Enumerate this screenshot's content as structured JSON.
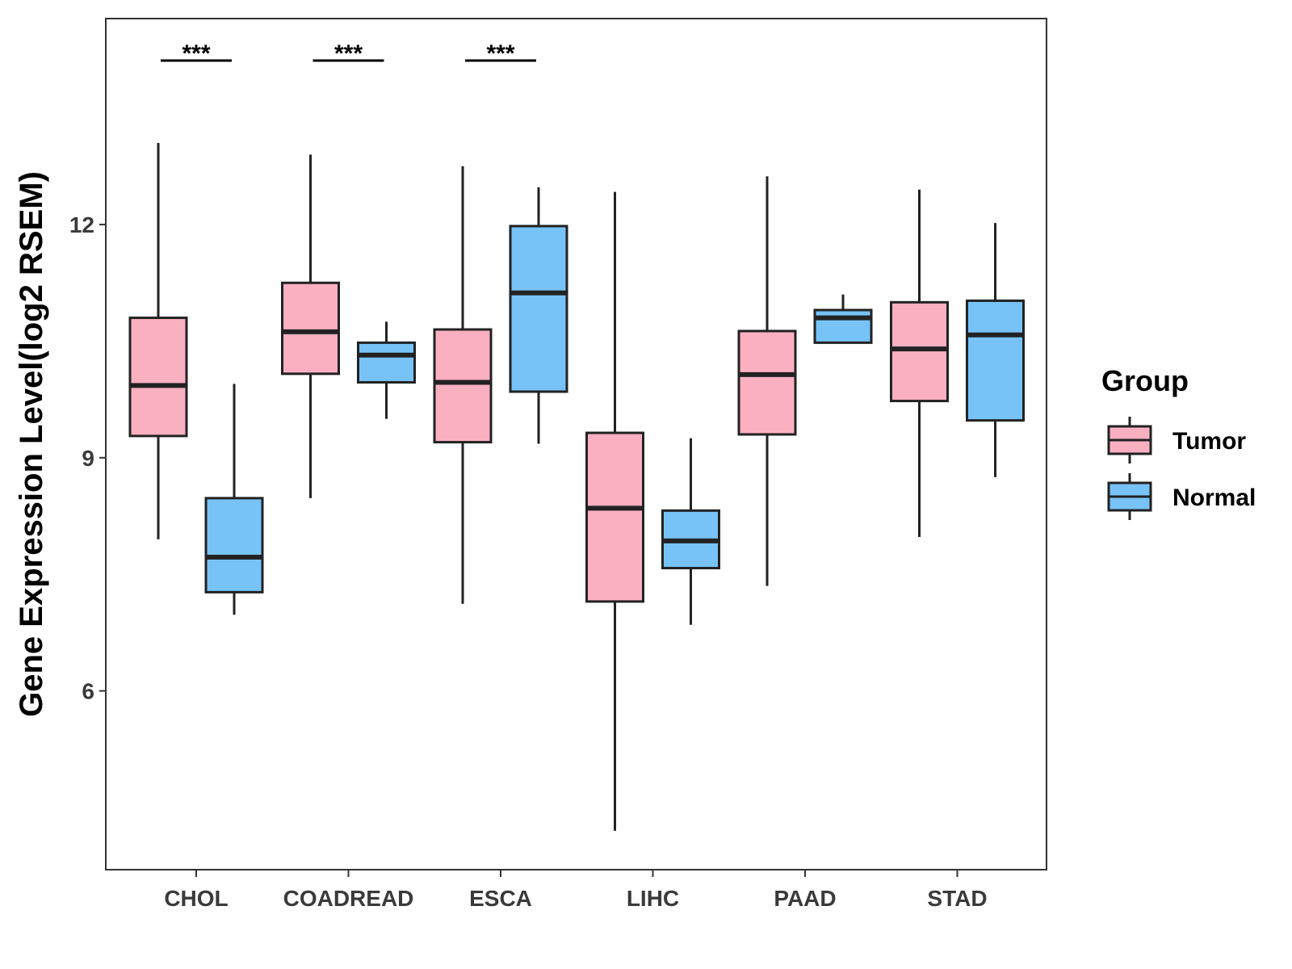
{
  "chart_data": {
    "type": "boxplot",
    "title": "",
    "xlabel": "",
    "ylabel": "Gene Expression Level(log2 RSEM)",
    "ylim": [
      3.7,
      14.65
    ],
    "yticks": [
      6,
      9,
      12
    ],
    "ytick_labels": [
      "6",
      "9",
      "12"
    ],
    "grid": false,
    "legend_position": "right",
    "legend": {
      "title": "Group",
      "entries": [
        "Tumor",
        "Normal"
      ]
    },
    "categories": [
      "CHOL",
      "COADREAD",
      "ESCA",
      "LIHC",
      "PAAD",
      "STAD"
    ],
    "series": [
      {
        "name": "Tumor",
        "color": "#FBB0C2",
        "boxes": [
          {
            "whisker_low": 7.95,
            "q1": 9.28,
            "median": 9.93,
            "q3": 10.8,
            "whisker_high": 13.05
          },
          {
            "whisker_low": 8.48,
            "q1": 10.08,
            "median": 10.62,
            "q3": 11.25,
            "whisker_high": 12.9
          },
          {
            "whisker_low": 7.12,
            "q1": 9.2,
            "median": 9.97,
            "q3": 10.65,
            "whisker_high": 12.75
          },
          {
            "whisker_low": 4.2,
            "q1": 7.15,
            "median": 8.35,
            "q3": 9.32,
            "whisker_high": 12.42
          },
          {
            "whisker_low": 7.35,
            "q1": 9.3,
            "median": 10.07,
            "q3": 10.63,
            "whisker_high": 12.62
          },
          {
            "whisker_low": 7.98,
            "q1": 9.73,
            "median": 10.4,
            "q3": 11.0,
            "whisker_high": 12.45
          }
        ]
      },
      {
        "name": "Normal",
        "color": "#77C2F7",
        "boxes": [
          {
            "whisker_low": 6.98,
            "q1": 7.27,
            "median": 7.72,
            "q3": 8.48,
            "whisker_high": 9.95
          },
          {
            "whisker_low": 9.5,
            "q1": 9.97,
            "median": 10.32,
            "q3": 10.48,
            "whisker_high": 10.75
          },
          {
            "whisker_low": 9.18,
            "q1": 9.85,
            "median": 11.12,
            "q3": 11.98,
            "whisker_high": 12.48
          },
          {
            "whisker_low": 6.85,
            "q1": 7.58,
            "median": 7.93,
            "q3": 8.32,
            "whisker_high": 9.25
          },
          {
            "whisker_low": 10.48,
            "q1": 10.48,
            "median": 10.8,
            "q3": 10.9,
            "whisker_high": 11.1
          },
          {
            "whisker_low": 8.75,
            "q1": 9.48,
            "median": 10.58,
            "q3": 11.02,
            "whisker_high": 12.02
          }
        ]
      }
    ],
    "annotations": [
      {
        "category": "CHOL",
        "text": "***"
      },
      {
        "category": "COADREAD",
        "text": "***"
      },
      {
        "category": "ESCA",
        "text": "***"
      }
    ],
    "colors": {
      "outline": "#222222",
      "panel_border": "#333333",
      "tick_text": "#3a3a3a"
    }
  }
}
